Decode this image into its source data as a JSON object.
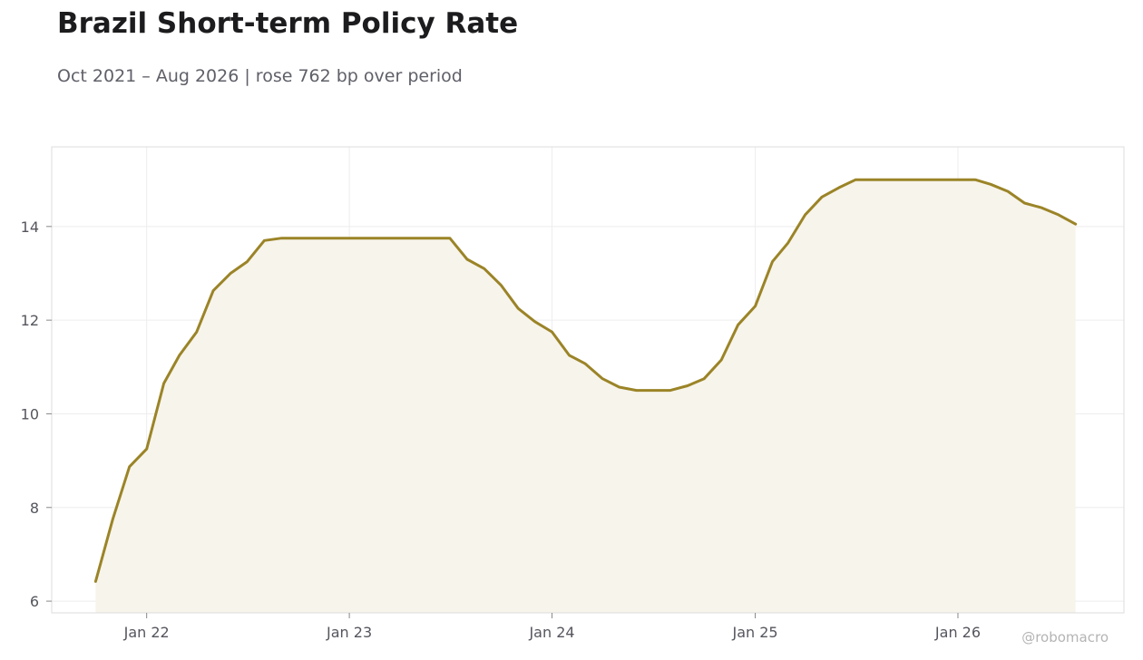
{
  "chart_data": {
    "type": "area",
    "title": "Brazil Short-term Policy Rate",
    "subtitle": "Oct 2021 – Aug 2026 | rose 762 bp over period",
    "xlabel": "",
    "ylabel": "",
    "x_tick_labels": [
      "Jan 22",
      "Jan 23",
      "Jan 24",
      "Jan 25",
      "Jan 26"
    ],
    "y_tick_labels": [
      "6",
      "8",
      "10",
      "12",
      "14"
    ],
    "y_ticks": [
      6,
      8,
      10,
      12,
      14
    ],
    "ylim": [
      5.75,
      15.7
    ],
    "xlim": [
      "2021-07-14",
      "2026-10-27"
    ],
    "grid": true,
    "legend": "none",
    "colors": {
      "line": "#9b8427",
      "fill": "#f7f4ec",
      "grid": "#ededed",
      "frame": "#dddddd"
    },
    "series": [
      {
        "x": [
          "2021-10",
          "2021-11",
          "2021-12",
          "2022-01",
          "2022-02",
          "2022-03",
          "2022-04",
          "2022-05",
          "2022-06",
          "2022-07",
          "2022-08",
          "2022-09",
          "2022-10",
          "2022-11",
          "2022-12",
          "2023-01",
          "2023-02",
          "2023-03",
          "2023-04",
          "2023-05",
          "2023-06",
          "2023-07",
          "2023-08",
          "2023-09",
          "2023-10",
          "2023-11",
          "2023-12",
          "2024-01",
          "2024-02",
          "2024-03",
          "2024-04",
          "2024-05",
          "2024-06",
          "2024-07",
          "2024-08",
          "2024-09",
          "2024-10",
          "2024-11",
          "2024-12",
          "2025-01",
          "2025-02",
          "2025-03",
          "2025-04",
          "2025-05",
          "2025-06",
          "2025-07",
          "2025-08",
          "2025-09",
          "2025-10",
          "2025-11",
          "2025-12",
          "2026-01",
          "2026-02",
          "2026-03",
          "2026-04",
          "2026-05",
          "2026-06",
          "2026-07",
          "2026-08"
        ],
        "values": [
          6.42,
          7.75,
          8.87,
          9.25,
          10.65,
          11.25,
          11.75,
          12.63,
          13.0,
          13.25,
          13.7,
          13.75,
          13.75,
          13.75,
          13.75,
          13.75,
          13.75,
          13.75,
          13.75,
          13.75,
          13.75,
          13.75,
          13.3,
          13.1,
          12.75,
          12.25,
          11.97,
          11.75,
          11.25,
          11.07,
          10.75,
          10.57,
          10.5,
          10.5,
          10.5,
          10.6,
          10.75,
          11.15,
          11.9,
          12.3,
          13.25,
          13.65,
          14.25,
          14.63,
          14.83,
          15.0,
          15.0,
          15.0,
          15.0,
          15.0,
          15.0,
          15.0,
          15.0,
          14.9,
          14.75,
          14.5,
          14.4,
          14.25,
          14.05
        ]
      }
    ]
  },
  "watermark": "@robomacro"
}
